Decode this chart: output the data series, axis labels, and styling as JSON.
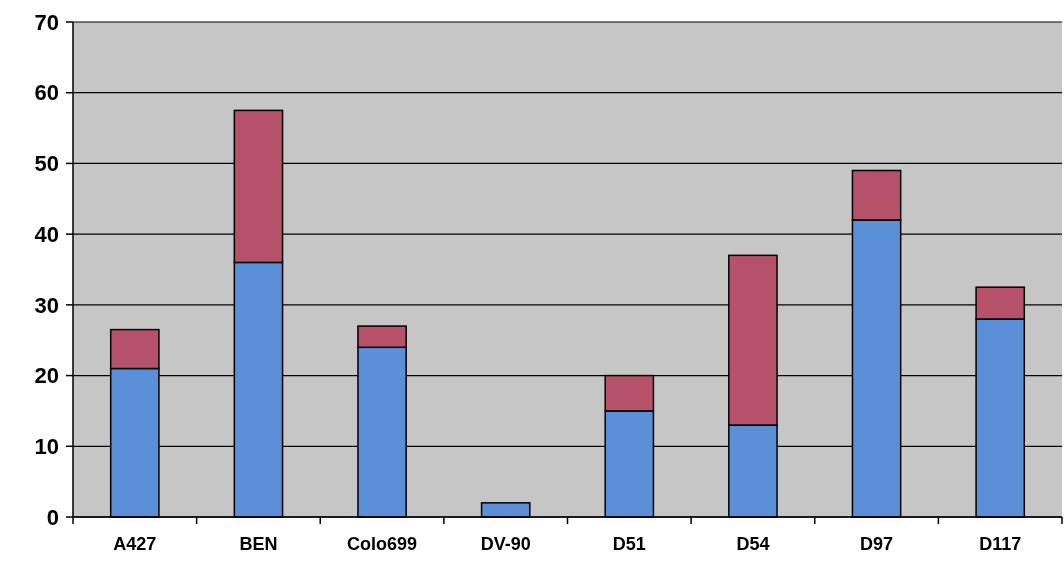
{
  "chart_data": {
    "type": "bar",
    "stacked": true,
    "categories": [
      "A427",
      "BEN",
      "Colo699",
      "DV-90",
      "D51",
      "D54",
      "D97",
      "D117"
    ],
    "series": [
      {
        "color": "#5b8fd8",
        "values": [
          21,
          36,
          24,
          2,
          15,
          13,
          42,
          28
        ]
      },
      {
        "color": "#b5526a",
        "values": [
          5.5,
          21.5,
          3,
          0,
          5,
          24,
          7,
          4.5
        ]
      }
    ],
    "ylim": [
      0,
      70
    ],
    "yticks": [
      0,
      10,
      20,
      30,
      40,
      50,
      60,
      70
    ],
    "grid": "y"
  }
}
